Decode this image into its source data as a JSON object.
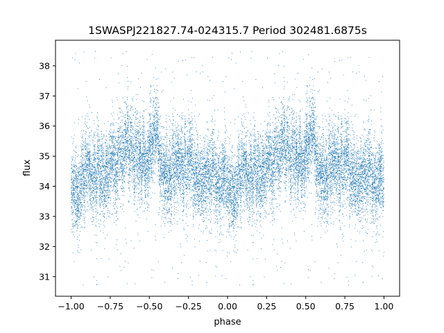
{
  "chart_data": {
    "type": "scatter",
    "title": "1SWASPJ221827.74-024315.7 Period 302481.6875s",
    "xlabel": "phase",
    "ylabel": "flux",
    "xlim": [
      -1.1,
      1.1
    ],
    "ylim": [
      30.35,
      38.85
    ],
    "x_ticks": [
      -1.0,
      -0.75,
      -0.5,
      -0.25,
      0.0,
      0.25,
      0.5,
      0.75,
      1.0
    ],
    "x_tick_labels": [
      "−1.00",
      "−0.75",
      "−0.50",
      "−0.25",
      "0.00",
      "0.25",
      "0.50",
      "0.75",
      "1.00"
    ],
    "y_ticks": [
      31,
      32,
      33,
      34,
      35,
      36,
      37,
      38
    ],
    "y_tick_labels": [
      "31",
      "32",
      "33",
      "34",
      "35",
      "36",
      "37",
      "38"
    ],
    "grid": false,
    "point_color": "#1f77b4",
    "phase_range": [
      -1.0,
      1.0
    ],
    "mean_flux": 34.7,
    "trend_profile": [
      {
        "phase": 0.0,
        "flux": 33.9
      },
      {
        "phase": 0.05,
        "flux": 34.2
      },
      {
        "phase": 0.1,
        "flux": 34.5
      },
      {
        "phase": 0.15,
        "flux": 34.5
      },
      {
        "phase": 0.2,
        "flux": 34.6
      },
      {
        "phase": 0.25,
        "flux": 34.6
      },
      {
        "phase": 0.3,
        "flux": 34.9
      },
      {
        "phase": 0.35,
        "flux": 35.3
      },
      {
        "phase": 0.4,
        "flux": 35.2
      },
      {
        "phase": 0.45,
        "flux": 34.7
      },
      {
        "phase": 0.5,
        "flux": 35.3
      },
      {
        "phase": 0.55,
        "flux": 35.5
      },
      {
        "phase": 0.6,
        "flux": 34.6
      },
      {
        "phase": 0.65,
        "flux": 34.6
      },
      {
        "phase": 0.7,
        "flux": 34.7
      },
      {
        "phase": 0.75,
        "flux": 34.6
      },
      {
        "phase": 0.8,
        "flux": 34.5
      },
      {
        "phase": 0.85,
        "flux": 34.6
      },
      {
        "phase": 0.9,
        "flux": 34.5
      },
      {
        "phase": 0.95,
        "flux": 34.3
      },
      {
        "phase": 1.0,
        "flux": 33.9
      }
    ],
    "scatter_sigma": 0.65,
    "outlier_range": [
      30.7,
      38.5
    ]
  }
}
